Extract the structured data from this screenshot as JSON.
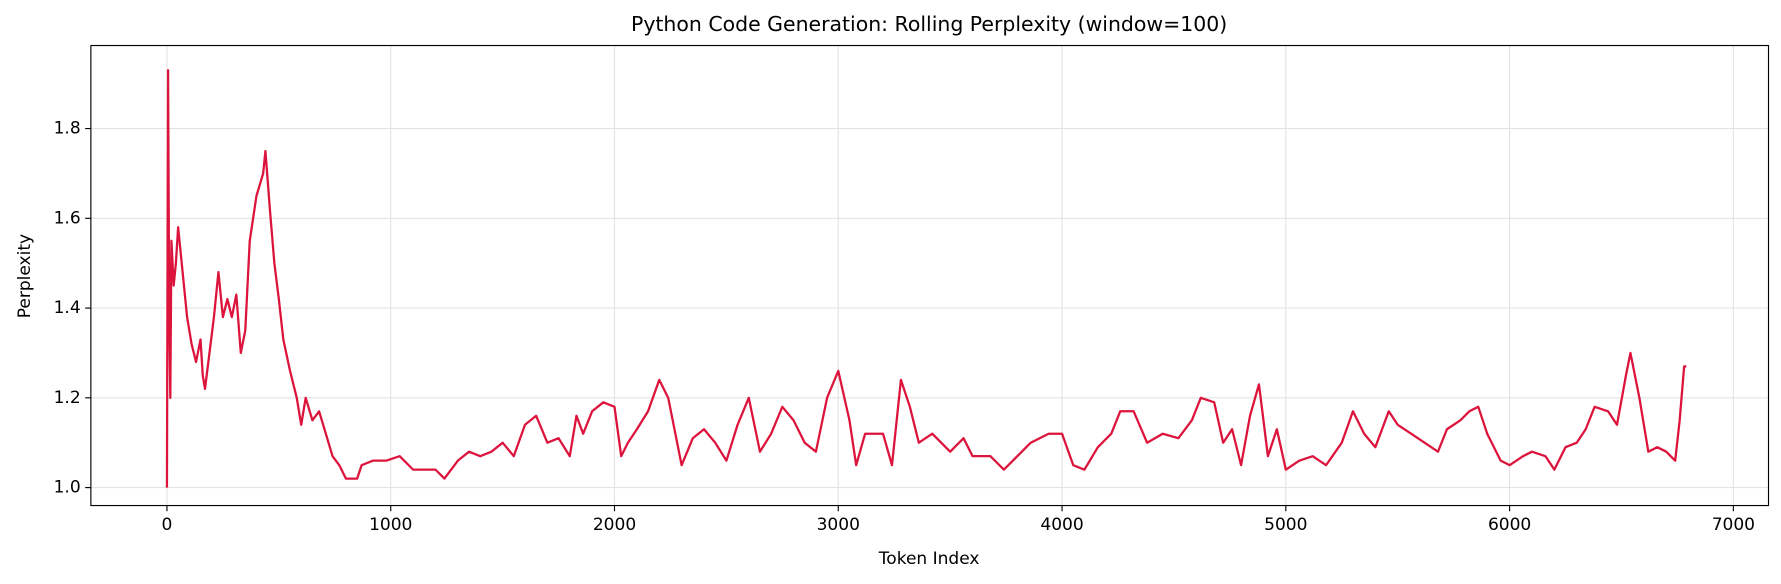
{
  "chart_data": {
    "type": "line",
    "title": "Python Code Generation: Rolling Perplexity (window=100)",
    "x_label": "Token Index",
    "y_label": "Perplexity",
    "color": "#dc143c",
    "grid": true,
    "xlim": [
      -340,
      7157
    ],
    "ylim": [
      0.96,
      1.985
    ],
    "xticks": [
      0,
      1000,
      2000,
      3000,
      4000,
      5000,
      6000,
      7000
    ],
    "yticks": [
      {
        "value": 1,
        "label": "1.0"
      },
      1.2,
      1.4,
      1.6,
      1.8
    ],
    "x": [
      0,
      5,
      10,
      15,
      20,
      30,
      40,
      50,
      70,
      90,
      110,
      130,
      150,
      160,
      170,
      190,
      210,
      230,
      250,
      270,
      290,
      310,
      330,
      350,
      370,
      400,
      430,
      440,
      460,
      480,
      500,
      520,
      550,
      580,
      600,
      620,
      650,
      680,
      710,
      740,
      770,
      800,
      850,
      870,
      920,
      980,
      1040,
      1100,
      1200,
      1240,
      1300,
      1350,
      1400,
      1450,
      1500,
      1550,
      1600,
      1650,
      1700,
      1750,
      1800,
      1830,
      1860,
      1900,
      1950,
      2000,
      2030,
      2060,
      2100,
      2150,
      2200,
      2240,
      2280,
      2300,
      2350,
      2400,
      2450,
      2500,
      2550,
      2600,
      2650,
      2700,
      2750,
      2800,
      2850,
      2900,
      2950,
      3000,
      3050,
      3080,
      3120,
      3200,
      3240,
      3280,
      3320,
      3360,
      3420,
      3500,
      3560,
      3600,
      3680,
      3740,
      3800,
      3860,
      3940,
      4000,
      4050,
      4100,
      4160,
      4220,
      4260,
      4320,
      4380,
      4450,
      4520,
      4580,
      4620,
      4680,
      4720,
      4760,
      4800,
      4840,
      4880,
      4920,
      4960,
      5000,
      5060,
      5120,
      5180,
      5250,
      5300,
      5350,
      5400,
      5460,
      5500,
      5560,
      5620,
      5680,
      5720,
      5780,
      5820,
      5860,
      5900,
      5960,
      6000,
      6060,
      6100,
      6160,
      6200,
      6250,
      6300,
      6340,
      6380,
      6440,
      6480,
      6520,
      6540,
      6580,
      6620,
      6660,
      6700,
      6740,
      6760,
      6780,
      6790
    ],
    "values": [
      1.0,
      1.93,
      1.4,
      1.2,
      1.55,
      1.45,
      1.5,
      1.58,
      1.48,
      1.38,
      1.32,
      1.28,
      1.33,
      1.25,
      1.22,
      1.3,
      1.38,
      1.48,
      1.38,
      1.42,
      1.38,
      1.43,
      1.3,
      1.35,
      1.55,
      1.65,
      1.7,
      1.75,
      1.62,
      1.5,
      1.42,
      1.33,
      1.26,
      1.2,
      1.14,
      1.2,
      1.15,
      1.17,
      1.12,
      1.07,
      1.05,
      1.02,
      1.02,
      1.05,
      1.06,
      1.06,
      1.07,
      1.04,
      1.04,
      1.02,
      1.06,
      1.08,
      1.07,
      1.08,
      1.1,
      1.07,
      1.14,
      1.16,
      1.1,
      1.11,
      1.07,
      1.16,
      1.12,
      1.17,
      1.19,
      1.18,
      1.07,
      1.1,
      1.13,
      1.17,
      1.24,
      1.2,
      1.1,
      1.05,
      1.11,
      1.13,
      1.1,
      1.06,
      1.14,
      1.2,
      1.08,
      1.12,
      1.18,
      1.15,
      1.1,
      1.08,
      1.2,
      1.26,
      1.15,
      1.05,
      1.12,
      1.12,
      1.05,
      1.24,
      1.18,
      1.1,
      1.12,
      1.08,
      1.11,
      1.07,
      1.07,
      1.04,
      1.07,
      1.1,
      1.12,
      1.12,
      1.05,
      1.04,
      1.09,
      1.12,
      1.17,
      1.17,
      1.1,
      1.12,
      1.11,
      1.15,
      1.2,
      1.19,
      1.1,
      1.13,
      1.05,
      1.16,
      1.23,
      1.07,
      1.13,
      1.04,
      1.06,
      1.07,
      1.05,
      1.1,
      1.17,
      1.12,
      1.09,
      1.17,
      1.14,
      1.12,
      1.1,
      1.08,
      1.13,
      1.15,
      1.17,
      1.18,
      1.12,
      1.06,
      1.05,
      1.07,
      1.08,
      1.07,
      1.04,
      1.09,
      1.1,
      1.13,
      1.18,
      1.17,
      1.14,
      1.25,
      1.3,
      1.2,
      1.08,
      1.09,
      1.08,
      1.06,
      1.15,
      1.27,
      1.27
    ]
  }
}
